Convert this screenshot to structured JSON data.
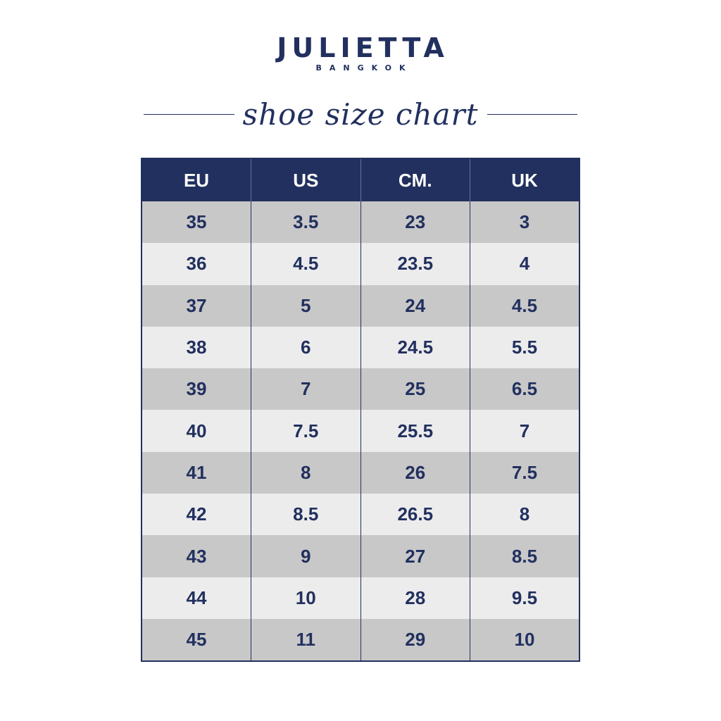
{
  "brand": {
    "name": "JULIETTA",
    "subtitle": "BANGKOK"
  },
  "title": "shoe size chart",
  "colors": {
    "navy": "#22305f",
    "row_dark": "#c8c8c8",
    "row_light": "#ececec"
  },
  "table": {
    "headers": [
      "EU",
      "US",
      "CM.",
      "UK"
    ],
    "rows": [
      [
        "35",
        "3.5",
        "23",
        "3"
      ],
      [
        "36",
        "4.5",
        "23.5",
        "4"
      ],
      [
        "37",
        "5",
        "24",
        "4.5"
      ],
      [
        "38",
        "6",
        "24.5",
        "5.5"
      ],
      [
        "39",
        "7",
        "25",
        "6.5"
      ],
      [
        "40",
        "7.5",
        "25.5",
        "7"
      ],
      [
        "41",
        "8",
        "26",
        "7.5"
      ],
      [
        "42",
        "8.5",
        "26.5",
        "8"
      ],
      [
        "43",
        "9",
        "27",
        "8.5"
      ],
      [
        "44",
        "10",
        "28",
        "9.5"
      ],
      [
        "45",
        "11",
        "29",
        "10"
      ]
    ]
  }
}
